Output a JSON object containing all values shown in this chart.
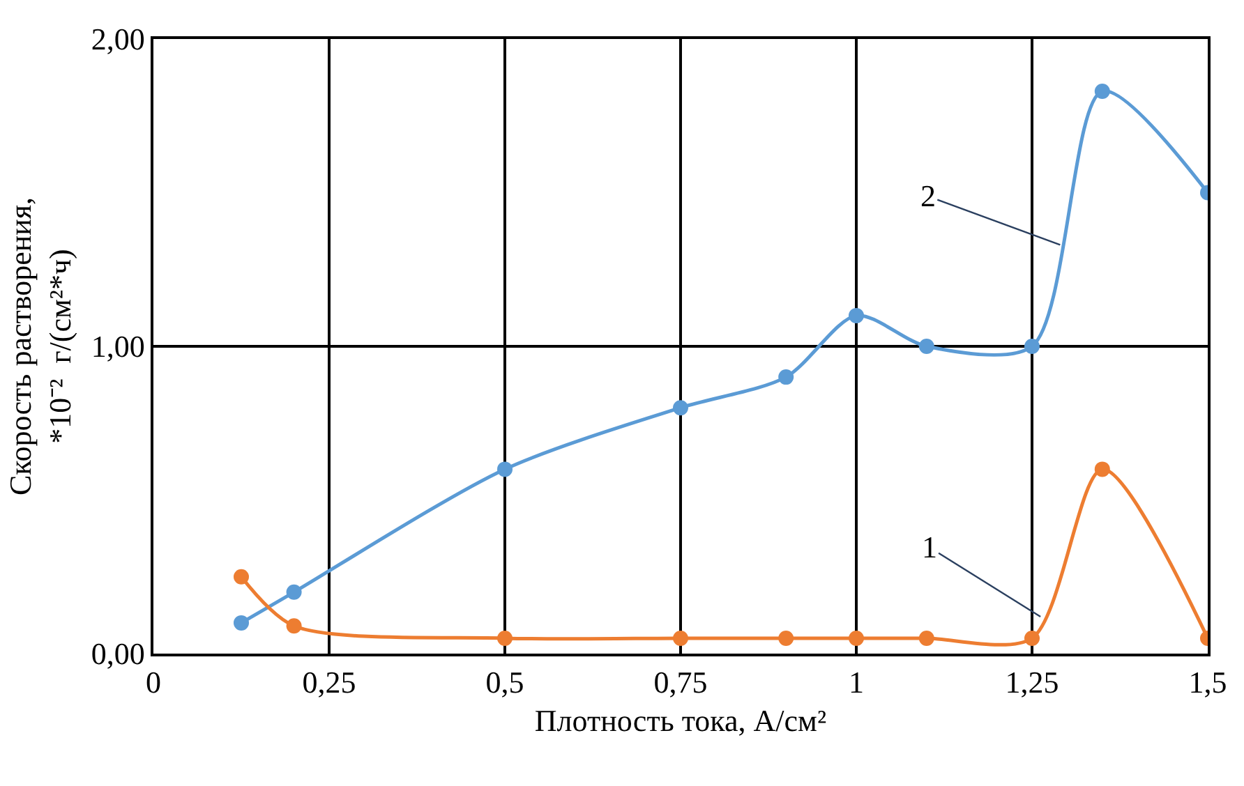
{
  "chart_data": {
    "type": "line",
    "xlabel": "Плотность тока, А/см²",
    "ylabel": "Скорость растворения,\n*10⁻²  г/(см²*ч)",
    "x": [
      0.125,
      0.2,
      0.5,
      0.75,
      0.9,
      1.0,
      1.1,
      1.25,
      1.35,
      1.5
    ],
    "series": [
      {
        "color": "#5b9bd5",
        "values": [
          0.1,
          0.2,
          0.6,
          0.8,
          0.9,
          1.1,
          1.0,
          1.0,
          1.83,
          1.5
        ]
      },
      {
        "color": "#ed7d31",
        "values": [
          0.25,
          0.09,
          0.05,
          0.05,
          0.05,
          0.05,
          0.05,
          0.05,
          0.6,
          0.05
        ]
      }
    ],
    "annotations": [
      {
        "text": "2",
        "x": 1.29,
        "y": 1.33
      },
      {
        "text": "1",
        "x": 1.262,
        "y": 0.12
      }
    ],
    "xlim": [
      0,
      1.5
    ],
    "xticks": [
      0,
      {
        "value": 0.25,
        "label": "0,25"
      },
      {
        "value": 0.5,
        "label": "0,5"
      },
      {
        "value": 0.75,
        "label": "0,75"
      },
      1,
      {
        "value": 1.25,
        "label": "1,25"
      },
      {
        "value": 1.5,
        "label": "1,5"
      }
    ],
    "ylim": [
      0,
      2
    ],
    "yticks": [
      {
        "value": 0,
        "label": "0,00"
      },
      {
        "value": 1,
        "label": "1,00"
      },
      {
        "value": 2,
        "label": "2,00"
      }
    ],
    "grid": true,
    "legend": false,
    "marker": "circle",
    "line_style": "solid"
  }
}
